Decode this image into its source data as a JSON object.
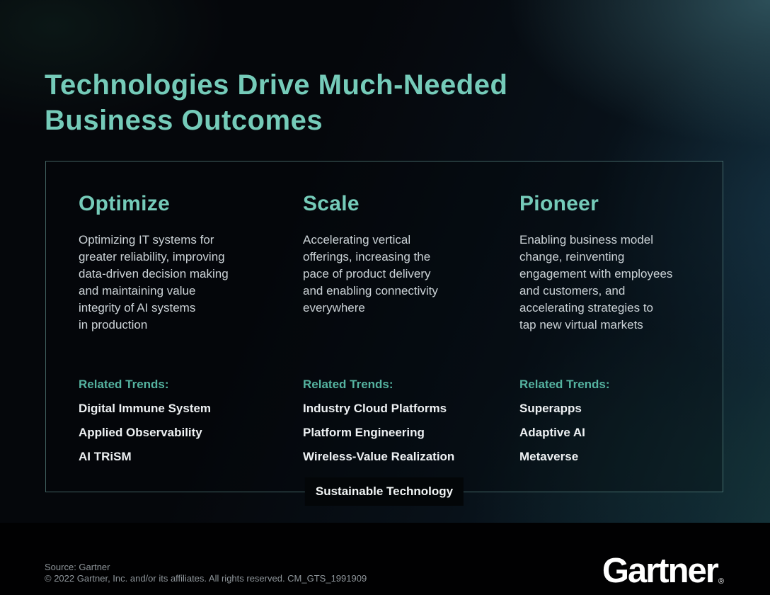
{
  "page": {
    "title": "Technologies Drive Much-Needed\nBusiness Outcomes"
  },
  "columns": [
    {
      "heading": "Optimize",
      "description": "Optimizing IT systems for\ngreater reliability, improving\ndata-driven decision making\nand maintaining value\nintegrity of AI systems\nin production",
      "trends_label": "Related Trends:",
      "trends": [
        "Digital Immune System",
        "Applied Observability",
        "AI TRiSM"
      ]
    },
    {
      "heading": "Scale",
      "description": "Accelerating vertical\nofferings, increasing the\npace of product delivery\nand enabling connectivity\neverywhere",
      "trends_label": "Related Trends:",
      "trends": [
        "Industry Cloud Platforms",
        "Platform Engineering",
        "Wireless-Value Realization"
      ]
    },
    {
      "heading": "Pioneer",
      "description": "Enabling business model\nchange, reinventing\nengagement with employees\nand customers, and\naccelerating strategies to\ntap new virtual markets",
      "trends_label": "Related Trends:",
      "trends": [
        "Superapps",
        "Adaptive AI",
        "Metaverse"
      ]
    }
  ],
  "banner": {
    "label": "Sustainable Technology"
  },
  "footer": {
    "source_line1": "Source: Gartner",
    "source_line2": "© 2022 Gartner, Inc. and/or its affiliates. All rights reserved. CM_GTS_1991909",
    "logo_text": "Gartner",
    "logo_mark": "®"
  },
  "colors": {
    "accent_teal": "#75cbb9",
    "trends_label_teal": "#55b3a0",
    "body_text": "#ccd3d7",
    "trend_item_text": "#eef1f3",
    "box_border": "#7db9b4",
    "banner_background": "#030608",
    "source_text": "#8f969b",
    "footer_background": "#010102",
    "background_base": "#05070b"
  }
}
